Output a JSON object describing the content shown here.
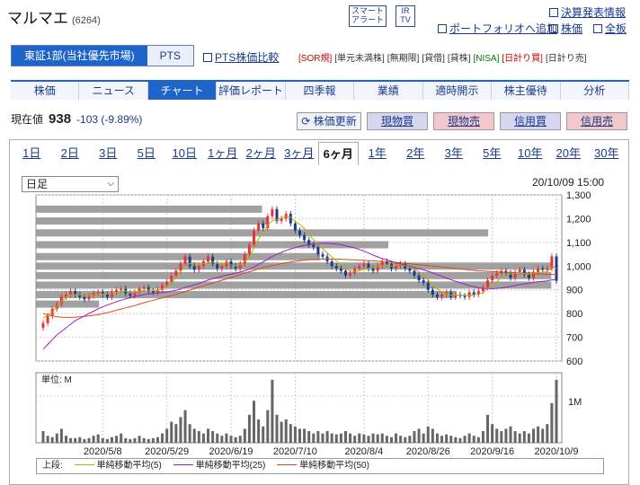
{
  "header": {
    "name": "マルマエ",
    "code": "(6264)",
    "badge1": [
      "スマート",
      "アラート"
    ],
    "badge2": [
      "IR",
      "TV"
    ],
    "link_earnings": "決算発表情報",
    "link_portfolio": "ポートフォリオへ追加",
    "link_price": "株価",
    "link_board": "全板"
  },
  "market_tabs": [
    "東証1部(当社優先市場)",
    "PTS"
  ],
  "pts_compare": "PTS株価比較",
  "tags": [
    "[SOR規]",
    "[単元未満株]",
    "[無期限]",
    "[貸借]",
    "[貸株]",
    "[NISA]",
    "[日計り買]",
    "[日計り売]"
  ],
  "nav": [
    "株価",
    "ニュース",
    "チャート",
    "評価レポート",
    "四季報",
    "業績",
    "適時開示",
    "株主優待",
    "分析"
  ],
  "quote": {
    "label": "現在値",
    "price": "938",
    "change": "-103 (-9.89%)"
  },
  "actions": {
    "update": "株価更新",
    "spot_buy": "現物買",
    "spot_sell": "現物売",
    "margin_buy": "信用買",
    "margin_sell": "信用売"
  },
  "periods": [
    "1日",
    "2日",
    "3日",
    "5日",
    "10日",
    "1ヶ月",
    "2ヶ月",
    "3ヶ月",
    "6ヶ月",
    "1年",
    "2年",
    "3年",
    "5年",
    "10年",
    "20年",
    "30年"
  ],
  "selected_period": "6ヶ月",
  "interval": "日足",
  "datetime": "20/10/09 15:00",
  "volume_unit": "単位: M",
  "legend": {
    "label": "上段:",
    "ma5": "単純移動平均(5)",
    "ma25": "単純移動平均(25)",
    "ma50": "単純移動平均(50)"
  },
  "colors": {
    "up": "#e8323c",
    "down": "#1f3a8a",
    "ma5": "#b8b000",
    "ma25": "#9a1fc8",
    "ma50": "#e04a10",
    "bar": "#909090"
  },
  "chart_data": {
    "type": "candlestick",
    "y_ticks": [
      "600",
      "700",
      "800",
      "900",
      "1,000",
      "1,100",
      "1,200",
      "1,300"
    ],
    "ylim": [
      600,
      1300
    ],
    "x_tick_labels": [
      "2020/5/8",
      "2020/5/29",
      "2020/6/19",
      "2020/7/10",
      "2020/8/4",
      "2020/8/26",
      "2020/9/16",
      "2020/10/9"
    ],
    "volume_tick": "1M",
    "closes": [
      760,
      790,
      820,
      840,
      870,
      880,
      895,
      880,
      870,
      860,
      875,
      885,
      890,
      880,
      870,
      890,
      900,
      905,
      885,
      875,
      890,
      905,
      910,
      895,
      890,
      900,
      920,
      935,
      960,
      980,
      1010,
      1040,
      1000,
      985,
      1000,
      1020,
      1040,
      1010,
      990,
      1000,
      1020,
      1000,
      990,
      1010,
      1050,
      1090,
      1150,
      1180,
      1160,
      1210,
      1240,
      1190,
      1200,
      1220,
      1180,
      1150,
      1130,
      1110,
      1090,
      1080,
      1050,
      1040,
      1020,
      1000,
      990,
      980,
      960,
      970,
      990,
      1000,
      1010,
      990,
      980,
      1000,
      1020,
      1010,
      990,
      1000,
      1010,
      990,
      980,
      960,
      940,
      930,
      900,
      880,
      870,
      880,
      890,
      870,
      880,
      875,
      870,
      890,
      880,
      895,
      910,
      940,
      960,
      970,
      980,
      970,
      950,
      975,
      985,
      965,
      950,
      975,
      990,
      985,
      990,
      1041,
      938
    ],
    "ma5": [
      780,
      795,
      805,
      830,
      850,
      870,
      880,
      880,
      880,
      875,
      875,
      875,
      880,
      882,
      883,
      885,
      889,
      895,
      895,
      890,
      890,
      893,
      898,
      899,
      898,
      898,
      903,
      913,
      929,
      951,
      977,
      1001,
      1010,
      1015,
      1007,
      1009,
      1015,
      1017,
      1012,
      1012,
      1014,
      1004,
      1000,
      1005,
      1020,
      1036,
      1076,
      1115,
      1140,
      1172,
      1192,
      1196,
      1202,
      1208,
      1206,
      1188,
      1176,
      1158,
      1132,
      1112,
      1092,
      1074,
      1056,
      1038,
      1022,
      1006,
      990,
      980,
      978,
      982,
      986,
      990,
      994,
      996,
      1002,
      1004,
      1000,
      1004,
      1006,
      1002,
      996,
      988,
      976,
      962,
      942,
      922,
      904,
      892,
      884,
      878,
      878,
      879,
      877,
      877,
      879,
      882,
      889,
      903,
      919,
      935,
      952,
      966,
      966,
      969,
      972,
      969,
      965,
      970,
      973,
      973,
      978,
      998,
      989
    ],
    "ma25": [
      650,
      670,
      690,
      710,
      725,
      740,
      755,
      770,
      780,
      790,
      800,
      810,
      820,
      828,
      836,
      843,
      850,
      856,
      862,
      867,
      872,
      876,
      880,
      883,
      885,
      887,
      889,
      891,
      894,
      898,
      904,
      911,
      916,
      921,
      927,
      934,
      941,
      947,
      952,
      957,
      962,
      966,
      970,
      975,
      980,
      987,
      996,
      1007,
      1017,
      1029,
      1040,
      1050,
      1058,
      1066,
      1072,
      1078,
      1083,
      1087,
      1090,
      1093,
      1095,
      1096,
      1096,
      1095,
      1093,
      1090,
      1086,
      1081,
      1076,
      1070,
      1063,
      1055,
      1047,
      1039,
      1032,
      1026,
      1020,
      1014,
      1009,
      1004,
      999,
      994,
      989,
      984,
      978,
      971,
      964,
      957,
      950,
      943,
      936,
      930,
      924,
      918,
      913,
      909,
      906,
      905,
      905,
      906,
      908,
      911,
      914,
      918,
      922,
      925,
      928,
      931,
      934,
      936,
      938,
      942,
      944
    ],
    "ma50": [
      800,
      795,
      790,
      787,
      785,
      784,
      784,
      785,
      786,
      788,
      790,
      793,
      796,
      800,
      804,
      809,
      814,
      819,
      824,
      829,
      834,
      840,
      846,
      851,
      856,
      861,
      866,
      871,
      876,
      881,
      887,
      893,
      899,
      905,
      911,
      917,
      923,
      929,
      935,
      940,
      946,
      952,
      958,
      964,
      970,
      976,
      982,
      988,
      993,
      998,
      1002,
      1006,
      1010,
      1014,
      1017,
      1020,
      1023,
      1025,
      1027,
      1028,
      1029,
      1030,
      1030,
      1030,
      1030,
      1029,
      1028,
      1027,
      1026,
      1025,
      1024,
      1023,
      1022,
      1021,
      1020,
      1019,
      1018,
      1016,
      1014,
      1012,
      1010,
      1008,
      1006,
      1004,
      1002,
      1000,
      998,
      996,
      994,
      992,
      990,
      988,
      986,
      984,
      982,
      980,
      979,
      978,
      977,
      976,
      975,
      974,
      973,
      972,
      971,
      970,
      969,
      968,
      967,
      966,
      965,
      965,
      964
    ],
    "volume": [
      0.25,
      0.15,
      0.12,
      0.2,
      0.3,
      0.15,
      0.1,
      0.1,
      0.12,
      0.08,
      0.1,
      0.15,
      0.18,
      0.1,
      0.08,
      0.12,
      0.15,
      0.2,
      0.1,
      0.08,
      0.1,
      0.15,
      0.1,
      0.08,
      0.1,
      0.12,
      0.2,
      0.3,
      0.45,
      0.4,
      0.55,
      0.7,
      0.4,
      0.3,
      0.25,
      0.2,
      0.3,
      0.25,
      0.2,
      0.15,
      0.2,
      0.15,
      0.12,
      0.15,
      0.3,
      0.6,
      0.9,
      0.5,
      0.35,
      0.7,
      1.35,
      0.6,
      0.45,
      0.5,
      0.4,
      0.35,
      0.3,
      0.3,
      0.25,
      0.2,
      0.25,
      0.2,
      0.25,
      0.2,
      0.18,
      0.2,
      0.25,
      0.2,
      0.15,
      0.2,
      0.18,
      0.15,
      0.2,
      0.18,
      0.2,
      0.15,
      0.12,
      0.2,
      0.15,
      0.12,
      0.15,
      0.25,
      0.3,
      0.2,
      0.35,
      0.3,
      0.2,
      0.15,
      0.18,
      0.15,
      0.12,
      0.1,
      0.15,
      0.2,
      0.15,
      0.12,
      0.25,
      0.6,
      0.4,
      0.3,
      0.25,
      0.3,
      0.35,
      0.25,
      0.2,
      0.25,
      0.2,
      0.3,
      0.35,
      0.3,
      0.4,
      0.85,
      1.35
    ],
    "volume_by_price": [
      [
        1240,
        0.43
      ],
      [
        1190,
        0.44
      ],
      [
        1140,
        0.86
      ],
      [
        1090,
        0.67
      ],
      [
        1040,
        0.54
      ],
      [
        1000,
        0.98
      ],
      [
        960,
        0.98
      ],
      [
        920,
        0.98
      ],
      [
        880,
        0.8
      ],
      [
        840,
        0.12
      ]
    ]
  }
}
